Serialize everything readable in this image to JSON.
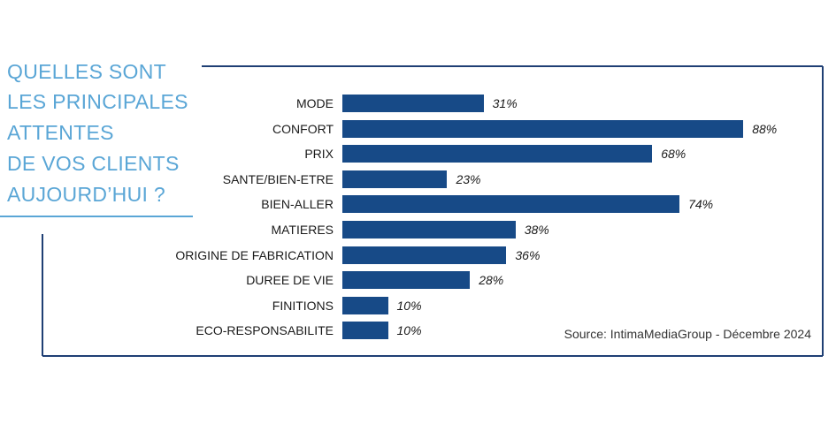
{
  "title_lines": [
    "QUELLES SONT",
    "LES PRINCIPALES",
    "ATTENTES",
    "DE VOS CLIENTS",
    "AUJOURD’HUI ?"
  ],
  "source": "Source: IntimaMediaGroup - Décembre 2024",
  "colors": {
    "bar": "#174a87",
    "frame": "#1f3f74",
    "title": "#5aa6d6"
  },
  "chart_data": {
    "type": "bar",
    "orientation": "horizontal",
    "title": "QUELLES SONT LES PRINCIPALES ATTENTES DE VOS CLIENTS AUJOURD’HUI ?",
    "categories": [
      "MODE",
      "CONFORT",
      "PRIX",
      "SANTE/BIEN-ETRE",
      "BIEN-ALLER",
      "MATIERES",
      "ORIGINE DE FABRICATION",
      "DUREE DE VIE",
      "FINITIONS",
      "ECO-RESPONSABILITE"
    ],
    "values": [
      31,
      88,
      68,
      23,
      74,
      38,
      36,
      28,
      10,
      10
    ],
    "value_labels": [
      "31%",
      "88%",
      "68%",
      "23%",
      "74%",
      "38%",
      "36%",
      "28%",
      "10%",
      "10%"
    ],
    "unit": "%",
    "xlim": [
      0,
      100
    ],
    "grid": false,
    "legend": "none"
  }
}
